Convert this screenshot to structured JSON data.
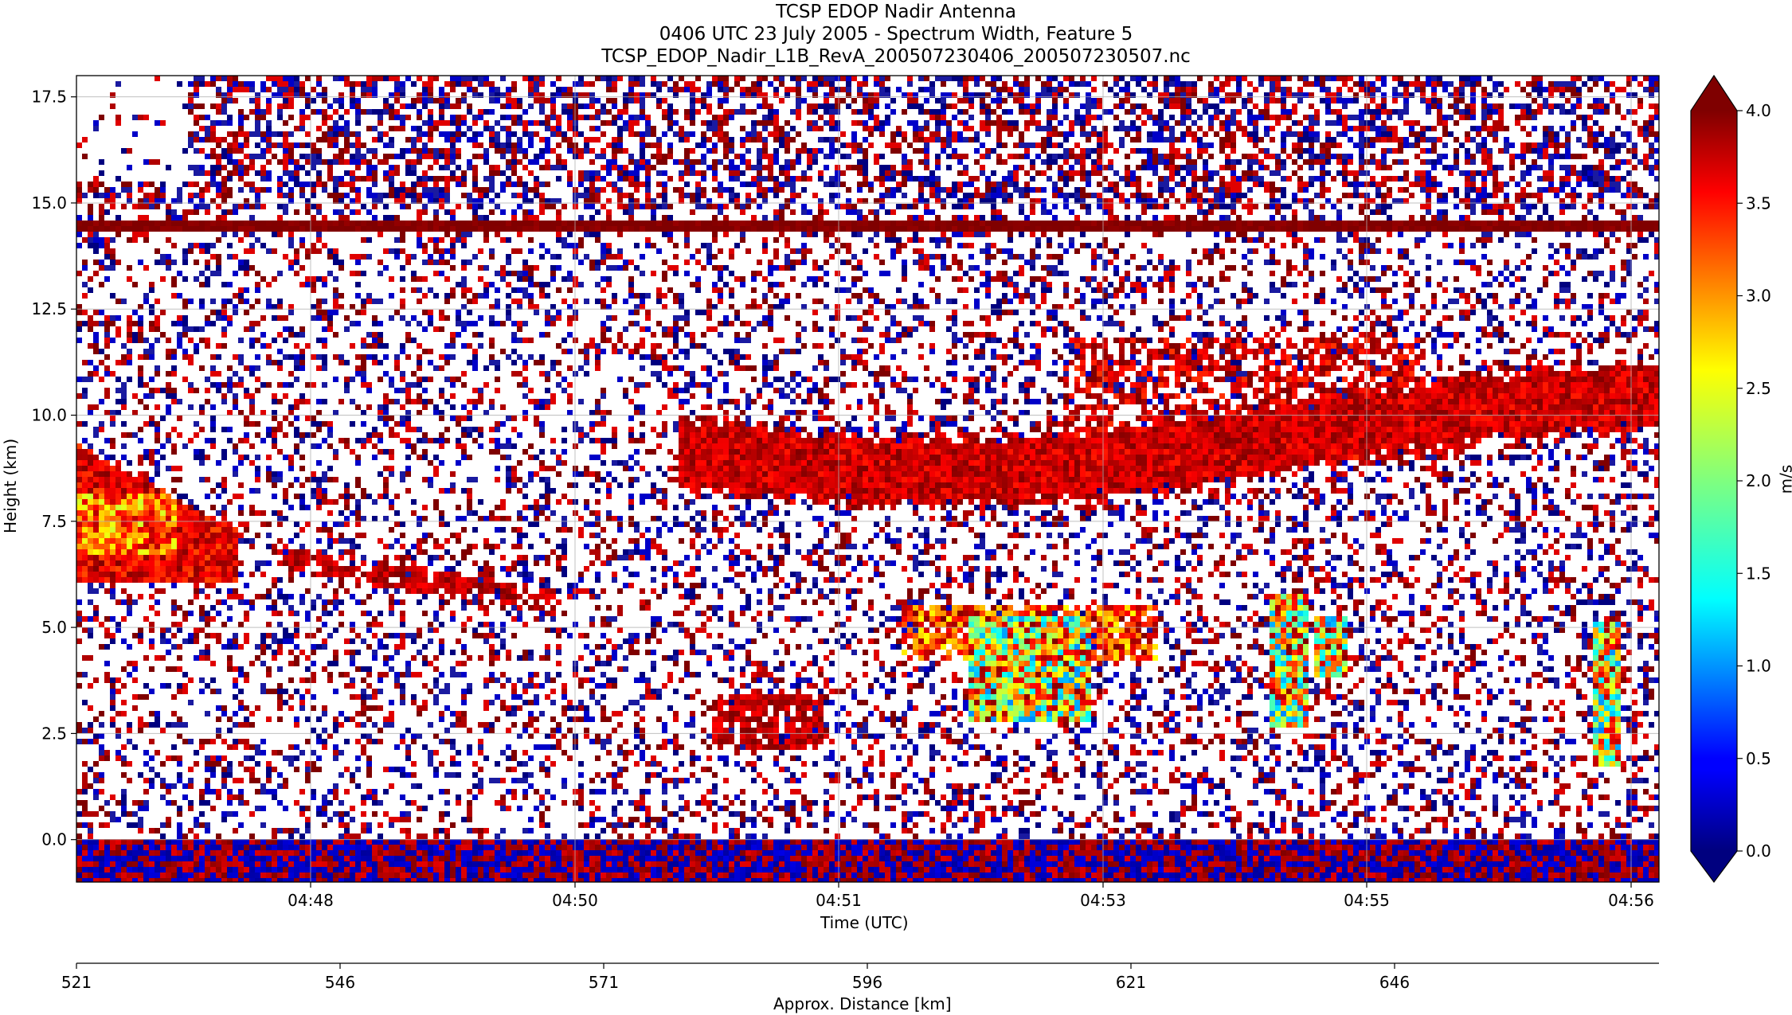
{
  "figure": {
    "title_line1": "TCSP EDOP Nadir Antenna",
    "title_line2": "0406 UTC 23 July 2005 - Spectrum Width, Feature 5",
    "title_line3": "TCSP_EDOP_Nadir_L1B_RevA_200507230406_200507230507.nc"
  },
  "chart_data": {
    "type": "heatmap",
    "variable": "Spectrum Width",
    "xlabel": "Time (UTC)",
    "ylabel": "Height (km)",
    "x2label": "Approx. Distance [km]",
    "colorbar_label": "m/s",
    "x_time_ticks": [
      "04:48",
      "04:50",
      "04:51",
      "04:53",
      "04:55",
      "04:56"
    ],
    "x_distance_ticks": [
      521,
      546,
      571,
      596,
      621,
      646
    ],
    "x_distance_range": [
      521,
      671
    ],
    "y_ticks": [
      0.0,
      2.5,
      5.0,
      7.5,
      10.0,
      12.5,
      15.0,
      17.5
    ],
    "y_tick_labels": [
      "0.0",
      "2.5",
      "5.0",
      "7.5",
      "10.0",
      "12.5",
      "15.0",
      "17.5"
    ],
    "ylim": [
      -1.0,
      18.0
    ],
    "colorbar_ticks": [
      0.0,
      0.5,
      1.0,
      1.5,
      2.0,
      2.5,
      3.0,
      3.5,
      4.0
    ],
    "colorbar_tick_labels": [
      "0.0",
      "0.5",
      "1.0",
      "1.5",
      "2.0",
      "2.5",
      "3.0",
      "3.5",
      "4.0"
    ],
    "colorbar_range": [
      0.0,
      4.0
    ],
    "colormap": "jet",
    "colorbar_extend": "both",
    "grid": true,
    "features": [
      {
        "name": "tropopause echo line",
        "height_km": 14.5,
        "value_ms": 4.0
      },
      {
        "name": "surface echo band",
        "height_km": [
          -1.0,
          0.0
        ]
      },
      {
        "name": "high-width stratiform region",
        "time_start": "beginning",
        "height_km": [
          6.0,
          9.0
        ],
        "value_ms": [
          2.5,
          4.0
        ]
      },
      {
        "name": "upper cloud layer",
        "height_km": [
          9.0,
          11.5
        ]
      },
      {
        "name": "convective cells",
        "height_km": [
          2.0,
          6.0
        ],
        "value_ms": [
          1.0,
          4.0
        ]
      }
    ]
  }
}
